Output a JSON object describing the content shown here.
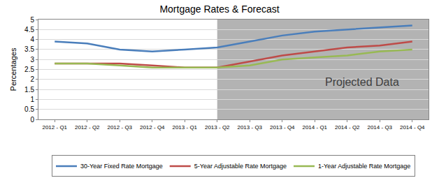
{
  "chart_data": {
    "type": "line",
    "title": "Mortgage Rates & Forecast",
    "y_label": "Percentages",
    "categories": [
      "2012 - Q1",
      "2012 - Q2",
      "2012 - Q3",
      "2012 - Q4",
      "2013 - Q1",
      "2013 - Q2",
      "2013 - Q3",
      "2013 - Q4",
      "2014 - Q1",
      "2014 - Q2",
      "2014 - Q3",
      "2014 - Q4"
    ],
    "series": [
      {
        "name": "30-Year Fixed Rate Mortgage",
        "color": "#4a7ebb",
        "values": [
          3.9,
          3.8,
          3.5,
          3.4,
          3.5,
          3.6,
          3.9,
          4.2,
          4.4,
          4.5,
          4.6,
          4.7
        ]
      },
      {
        "name": "5-Year Adjustable Rate Mortgage",
        "color": "#be4b48",
        "values": [
          2.8,
          2.8,
          2.8,
          2.7,
          2.6,
          2.6,
          2.9,
          3.2,
          3.4,
          3.6,
          3.7,
          3.9
        ]
      },
      {
        "name": "1-Year Adjustable Rate Mortgage",
        "color": "#98b954",
        "values": [
          2.8,
          2.8,
          2.7,
          2.6,
          2.6,
          2.6,
          2.7,
          3.0,
          3.1,
          3.2,
          3.4,
          3.5
        ]
      }
    ],
    "ylim": [
      0,
      5
    ],
    "yticks": [
      0,
      0.5,
      1,
      1.5,
      2,
      2.5,
      3,
      3.5,
      4,
      4.5,
      5
    ],
    "grid": true,
    "legend": "bottom",
    "annotations": [
      {
        "text": "Projected Data",
        "x": "2013 - Q2"
      }
    ]
  }
}
